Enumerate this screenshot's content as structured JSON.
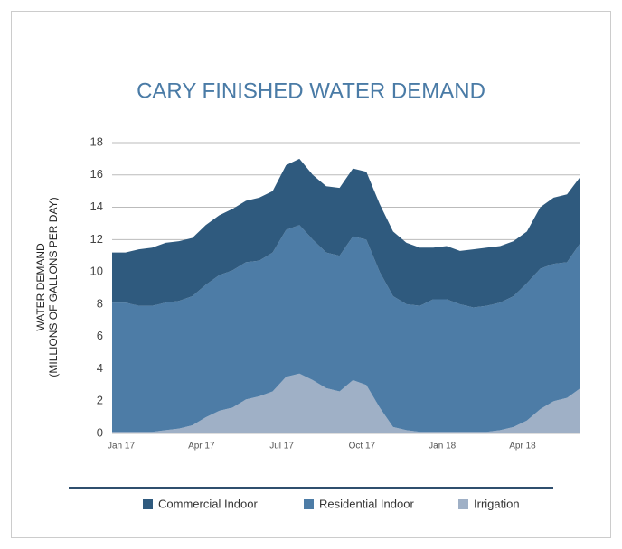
{
  "chart_data": {
    "type": "stacked_area",
    "title": "CARY FINISHED WATER DEMAND",
    "ylabel": [
      "WATER DEMAND",
      "(MILLIONS OF GALLONS PER DAY)"
    ],
    "categories": [
      "Jan 17",
      null,
      null,
      null,
      null,
      null,
      "Apr 17",
      null,
      null,
      null,
      null,
      null,
      "Jul 17",
      null,
      null,
      null,
      null,
      null,
      "Oct 17",
      null,
      null,
      null,
      null,
      null,
      "Jan 18",
      null,
      null,
      null,
      null,
      null,
      "Apr 18",
      null,
      null,
      null,
      null,
      null
    ],
    "series": [
      {
        "name": "Commercial Indoor",
        "color": "#2f5a7e",
        "values": [
          3.1,
          3.1,
          3.5,
          3.6,
          3.7,
          3.7,
          3.6,
          3.7,
          3.7,
          3.8,
          3.8,
          3.9,
          3.8,
          4.0,
          4.1,
          4.0,
          4.1,
          4.2,
          4.2,
          4.2,
          4.2,
          4.0,
          3.8,
          3.6,
          3.2,
          3.3,
          3.3,
          3.6,
          3.6,
          3.5,
          3.4,
          3.2,
          3.8,
          4.1,
          4.2,
          4.1
        ]
      },
      {
        "name": "Residential Indoor",
        "color": "#4d7ca6",
        "values": [
          8.0,
          8.0,
          7.8,
          7.8,
          7.9,
          7.9,
          8.0,
          8.2,
          8.4,
          8.5,
          8.5,
          8.4,
          8.6,
          9.1,
          9.2,
          8.7,
          8.4,
          8.4,
          8.9,
          9.0,
          8.4,
          8.1,
          7.8,
          7.8,
          8.2,
          8.2,
          7.9,
          7.7,
          7.8,
          7.9,
          8.1,
          8.5,
          8.7,
          8.5,
          8.4,
          9.0
        ]
      },
      {
        "name": "Irrigation",
        "color": "#9fb0c6",
        "values": [
          0.1,
          0.1,
          0.1,
          0.1,
          0.2,
          0.3,
          0.5,
          1.0,
          1.4,
          1.6,
          2.1,
          2.3,
          2.6,
          3.5,
          3.7,
          3.3,
          2.8,
          2.6,
          3.3,
          3.0,
          1.6,
          0.4,
          0.2,
          0.1,
          0.1,
          0.1,
          0.1,
          0.1,
          0.1,
          0.2,
          0.4,
          0.8,
          1.5,
          2.0,
          2.2,
          2.8
        ]
      }
    ],
    "ylim": [
      0,
      18
    ],
    "yticks": [
      0,
      2,
      4,
      6,
      8,
      10,
      12,
      14,
      16,
      18
    ],
    "grid": true
  }
}
